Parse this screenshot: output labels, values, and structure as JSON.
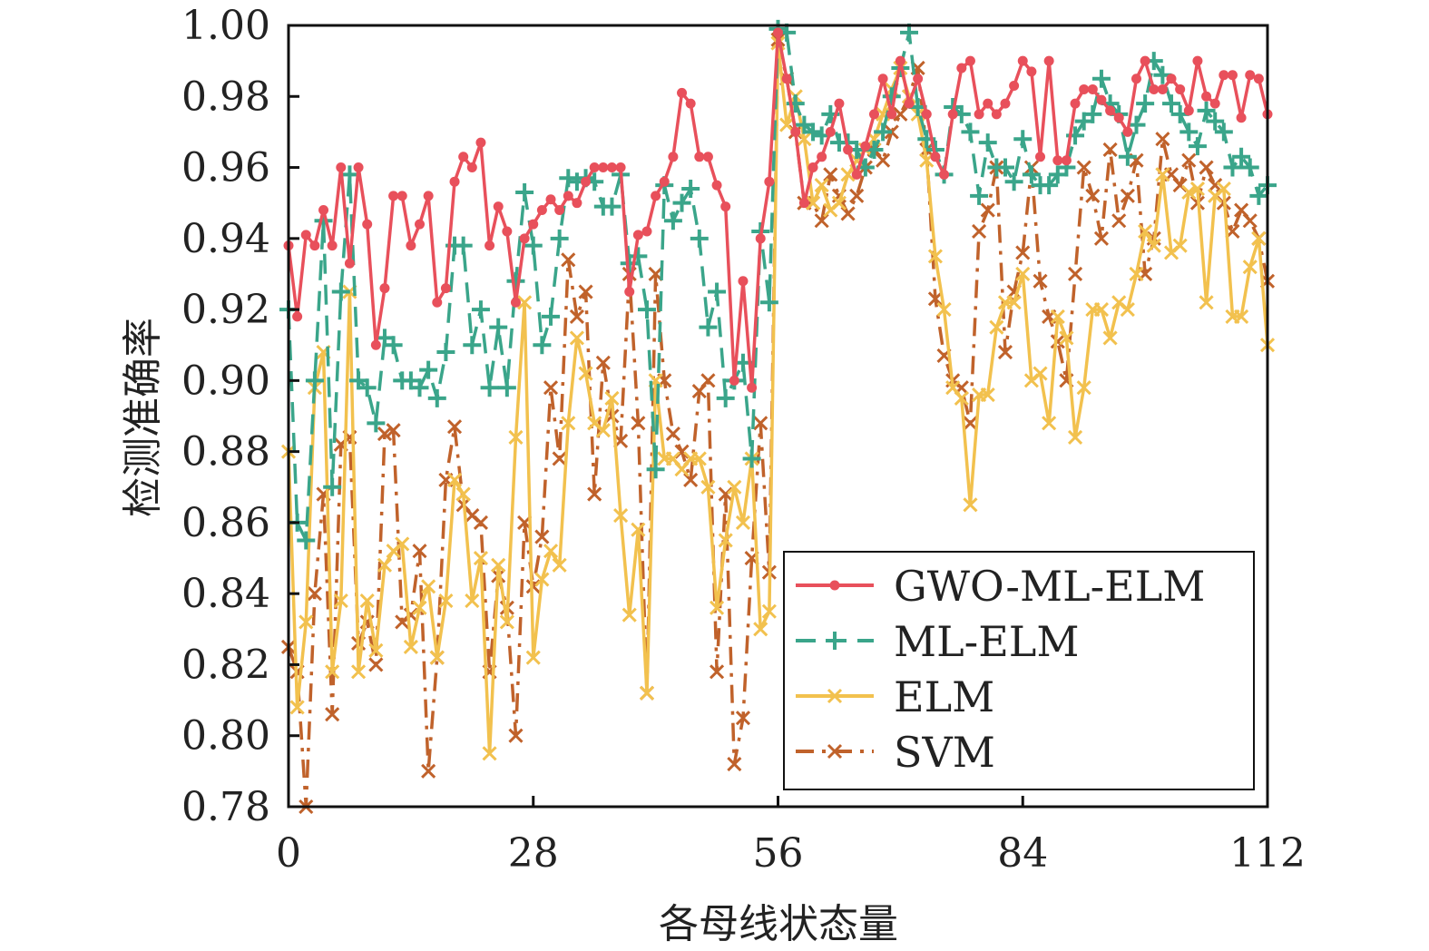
{
  "chart_data": {
    "type": "line",
    "title": "",
    "xlabel": "各母线状态量",
    "ylabel": "检测准确率",
    "xlim": [
      0,
      112
    ],
    "ylim": [
      0.78,
      1.0
    ],
    "xticks": [
      0,
      28,
      56,
      84,
      112
    ],
    "xtick_labels": [
      "0",
      "28",
      "56",
      "84",
      "112"
    ],
    "yticks": [
      0.78,
      0.8,
      0.82,
      0.84,
      0.86,
      0.88,
      0.9,
      0.92,
      0.94,
      0.96,
      0.98,
      1.0
    ],
    "ytick_labels": [
      "0.78",
      "0.80",
      "0.82",
      "0.84",
      "0.86",
      "0.88",
      "0.90",
      "0.92",
      "0.94",
      "0.96",
      "0.98",
      "1.00"
    ],
    "grid": false,
    "legend_position": "bottom-right",
    "series": [
      {
        "name": "SVM",
        "color": "#c0622b",
        "marker": "x",
        "linestyle": "dashdot",
        "values": [
          0.825,
          0.818,
          0.78,
          0.84,
          0.868,
          0.806,
          0.882,
          0.884,
          0.826,
          0.832,
          0.82,
          0.885,
          0.886,
          0.832,
          0.834,
          0.852,
          0.79,
          0.822,
          0.872,
          0.887,
          0.865,
          0.862,
          0.86,
          0.818,
          0.845,
          0.836,
          0.8,
          0.86,
          0.842,
          0.856,
          0.898,
          0.878,
          0.934,
          0.918,
          0.925,
          0.868,
          0.905,
          0.89,
          0.883,
          0.93,
          0.888,
          0.812,
          0.93,
          0.9,
          0.885,
          0.88,
          0.872,
          0.897,
          0.9,
          0.818,
          0.868,
          0.792,
          0.805,
          0.85,
          0.888,
          0.846,
          0.996,
          0.985,
          0.97,
          0.95,
          0.95,
          0.945,
          0.958,
          0.952,
          0.947,
          0.952,
          0.96,
          0.965,
          0.962,
          0.97,
          0.975,
          0.98,
          0.988,
          0.965,
          0.923,
          0.907,
          0.9,
          0.898,
          0.888,
          0.942,
          0.948,
          0.96,
          0.908,
          0.925,
          0.936,
          0.96,
          0.928,
          0.918,
          0.911,
          0.9,
          0.93,
          0.96,
          0.952,
          0.94,
          0.965,
          0.945,
          0.952,
          0.962,
          0.93,
          0.94,
          0.968,
          0.958,
          0.955,
          0.962,
          0.95,
          0.96,
          0.955,
          0.95,
          0.942,
          0.948,
          0.945,
          0.94,
          0.928
        ]
      },
      {
        "name": "ELM",
        "color": "#f2c14e",
        "marker": "x",
        "linestyle": "solid",
        "values": [
          0.88,
          0.808,
          0.832,
          0.898,
          0.908,
          0.818,
          0.838,
          0.925,
          0.818,
          0.838,
          0.824,
          0.848,
          0.852,
          0.854,
          0.825,
          0.836,
          0.842,
          0.822,
          0.838,
          0.872,
          0.868,
          0.838,
          0.85,
          0.795,
          0.848,
          0.832,
          0.884,
          0.922,
          0.822,
          0.844,
          0.852,
          0.848,
          0.888,
          0.912,
          0.902,
          0.888,
          0.886,
          0.895,
          0.862,
          0.834,
          0.858,
          0.812,
          0.9,
          0.878,
          0.878,
          0.875,
          0.878,
          0.878,
          0.87,
          0.836,
          0.855,
          0.87,
          0.86,
          0.878,
          0.83,
          0.835,
          0.995,
          0.972,
          0.98,
          0.968,
          0.95,
          0.955,
          0.948,
          0.95,
          0.958,
          0.962,
          0.965,
          0.968,
          0.975,
          0.982,
          0.988,
          0.98,
          0.975,
          0.962,
          0.935,
          0.92,
          0.898,
          0.895,
          0.865,
          0.896,
          0.896,
          0.915,
          0.922,
          0.922,
          0.93,
          0.9,
          0.902,
          0.888,
          0.918,
          0.912,
          0.884,
          0.898,
          0.92,
          0.92,
          0.912,
          0.922,
          0.92,
          0.93,
          0.942,
          0.938,
          0.958,
          0.936,
          0.938,
          0.953,
          0.954,
          0.922,
          0.952,
          0.954,
          0.918,
          0.918,
          0.932,
          0.94,
          0.91
        ]
      },
      {
        "name": "ML-ELM",
        "color": "#3aa58a",
        "marker": "+",
        "linestyle": "dashed",
        "values": [
          0.92,
          0.86,
          0.855,
          0.9,
          0.945,
          0.87,
          0.925,
          0.958,
          0.9,
          0.898,
          0.888,
          0.912,
          0.91,
          0.9,
          0.9,
          0.898,
          0.903,
          0.895,
          0.908,
          0.938,
          0.938,
          0.91,
          0.92,
          0.898,
          0.915,
          0.898,
          0.928,
          0.953,
          0.938,
          0.91,
          0.918,
          0.94,
          0.957,
          0.956,
          0.957,
          0.956,
          0.949,
          0.949,
          0.958,
          0.933,
          0.935,
          0.92,
          0.875,
          0.955,
          0.945,
          0.95,
          0.954,
          0.94,
          0.915,
          0.925,
          0.895,
          0.9,
          0.905,
          0.878,
          0.942,
          0.922,
          0.999,
          0.998,
          0.978,
          0.972,
          0.97,
          0.969,
          0.975,
          0.967,
          0.967,
          0.965,
          0.96,
          0.965,
          0.97,
          0.98,
          0.988,
          0.998,
          0.977,
          0.968,
          0.965,
          0.958,
          0.977,
          0.975,
          0.97,
          0.952,
          0.967,
          0.96,
          0.96,
          0.956,
          0.968,
          0.958,
          0.955,
          0.955,
          0.958,
          0.96,
          0.969,
          0.973,
          0.975,
          0.985,
          0.978,
          0.975,
          0.963,
          0.972,
          0.978,
          0.99,
          0.986,
          0.978,
          0.975,
          0.97,
          0.966,
          0.976,
          0.973,
          0.97,
          0.96,
          0.963,
          0.96,
          0.952,
          0.955
        ]
      },
      {
        "name": "GWO-ML-ELM",
        "color": "#e8505b",
        "marker": "o",
        "linestyle": "solid",
        "values": [
          0.938,
          0.918,
          0.941,
          0.938,
          0.948,
          0.938,
          0.96,
          0.933,
          0.96,
          0.944,
          0.91,
          0.926,
          0.952,
          0.952,
          0.938,
          0.944,
          0.952,
          0.922,
          0.926,
          0.956,
          0.963,
          0.96,
          0.967,
          0.938,
          0.949,
          0.942,
          0.922,
          0.94,
          0.944,
          0.948,
          0.951,
          0.948,
          0.952,
          0.95,
          0.956,
          0.96,
          0.96,
          0.96,
          0.96,
          0.925,
          0.941,
          0.942,
          0.952,
          0.956,
          0.963,
          0.981,
          0.978,
          0.963,
          0.963,
          0.955,
          0.949,
          0.9,
          0.928,
          0.898,
          0.94,
          0.956,
          0.998,
          0.985,
          0.97,
          0.95,
          0.96,
          0.963,
          0.97,
          0.978,
          0.965,
          0.958,
          0.966,
          0.975,
          0.985,
          0.975,
          0.99,
          0.978,
          0.985,
          0.975,
          0.963,
          0.958,
          0.975,
          0.988,
          0.99,
          0.975,
          0.978,
          0.975,
          0.978,
          0.983,
          0.99,
          0.987,
          0.963,
          0.99,
          0.962,
          0.962,
          0.978,
          0.982,
          0.982,
          0.979,
          0.976,
          0.974,
          0.97,
          0.985,
          0.99,
          0.982,
          0.982,
          0.985,
          0.982,
          0.976,
          0.99,
          0.98,
          0.978,
          0.986,
          0.986,
          0.974,
          0.986,
          0.985,
          0.975
        ]
      }
    ],
    "legend_order": [
      "GWO-ML-ELM",
      "ML-ELM",
      "ELM",
      "SVM"
    ]
  }
}
